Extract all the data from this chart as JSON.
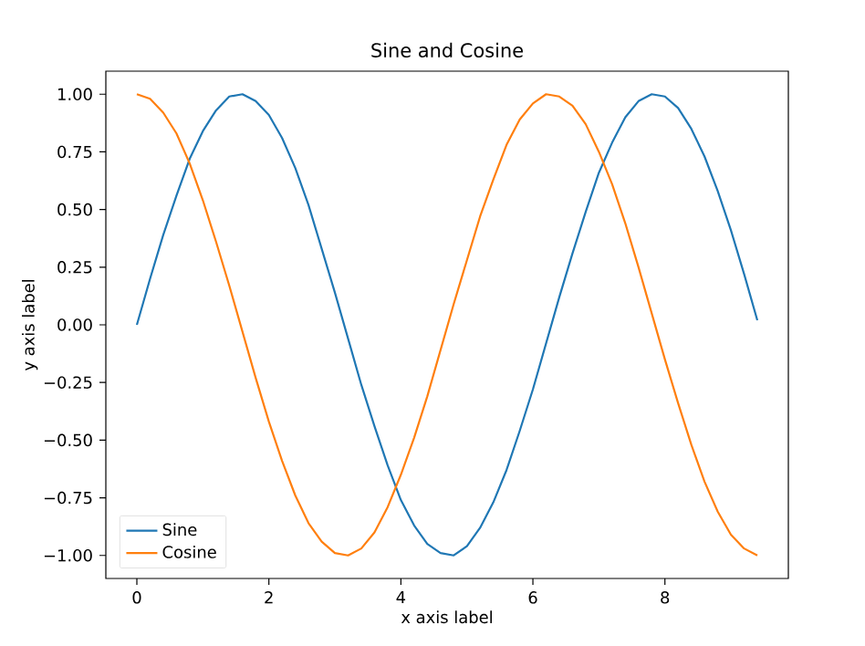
{
  "chart_data": {
    "type": "line",
    "title": "Sine and Cosine",
    "xlabel": "x axis label",
    "ylabel": "y axis label",
    "x": [
      0,
      0.2,
      0.4,
      0.6,
      0.8,
      1.0,
      1.2,
      1.4,
      1.6,
      1.8,
      2.0,
      2.2,
      2.4,
      2.6,
      2.8,
      3.0,
      3.2,
      3.4,
      3.6,
      3.8,
      4.0,
      4.2,
      4.4,
      4.6,
      4.8,
      5.0,
      5.2,
      5.4,
      5.6,
      5.8,
      6.0,
      6.2,
      6.4,
      6.6,
      6.8,
      7.0,
      7.2,
      7.4,
      7.6,
      7.8,
      8.0,
      8.2,
      8.4,
      8.6,
      8.8,
      9.0,
      9.2,
      9.4
    ],
    "series": [
      {
        "name": "Sine",
        "color": "#1f77b4",
        "values": [
          0,
          0.2,
          0.39,
          0.56,
          0.72,
          0.84,
          0.93,
          0.99,
          1.0,
          0.97,
          0.91,
          0.81,
          0.68,
          0.52,
          0.33,
          0.14,
          -0.06,
          -0.26,
          -0.44,
          -0.61,
          -0.76,
          -0.87,
          -0.95,
          -0.99,
          -1.0,
          -0.96,
          -0.88,
          -0.77,
          -0.63,
          -0.46,
          -0.28,
          -0.08,
          0.12,
          0.31,
          0.49,
          0.66,
          0.79,
          0.9,
          0.97,
          1.0,
          0.99,
          0.94,
          0.85,
          0.73,
          0.58,
          0.41,
          0.22,
          0.02
        ]
      },
      {
        "name": "Cosine",
        "color": "#ff7f0e",
        "values": [
          1.0,
          0.98,
          0.92,
          0.83,
          0.7,
          0.54,
          0.36,
          0.17,
          -0.03,
          -0.23,
          -0.42,
          -0.59,
          -0.74,
          -0.86,
          -0.94,
          -0.99,
          -1.0,
          -0.97,
          -0.9,
          -0.79,
          -0.65,
          -0.49,
          -0.31,
          -0.11,
          0.09,
          0.28,
          0.47,
          0.63,
          0.78,
          0.89,
          0.96,
          1.0,
          0.99,
          0.95,
          0.87,
          0.75,
          0.61,
          0.44,
          0.25,
          0.05,
          -0.15,
          -0.34,
          -0.52,
          -0.68,
          -0.81,
          -0.91,
          -0.97,
          -1.0
        ]
      }
    ],
    "xlim": [
      -0.47,
      9.87
    ],
    "ylim": [
      -1.1,
      1.1
    ],
    "xticks": [
      0,
      2,
      4,
      6,
      8
    ],
    "yticks": [
      {
        "value": -1,
        "label": "−1.00"
      },
      {
        "value": -0.75,
        "label": "−0.75"
      },
      {
        "value": -0.5,
        "label": "−0.50"
      },
      {
        "value": -0.25,
        "label": "−0.25"
      },
      {
        "value": 0,
        "label": "0.00"
      },
      {
        "value": 0.25,
        "label": "0.25"
      },
      {
        "value": 0.5,
        "label": "0.50"
      },
      {
        "value": 0.75,
        "label": "0.75"
      },
      {
        "value": 1,
        "label": "1.00"
      }
    ],
    "legend": "bottom left",
    "grid": false,
    "marker": "none",
    "line_style": "solid"
  }
}
